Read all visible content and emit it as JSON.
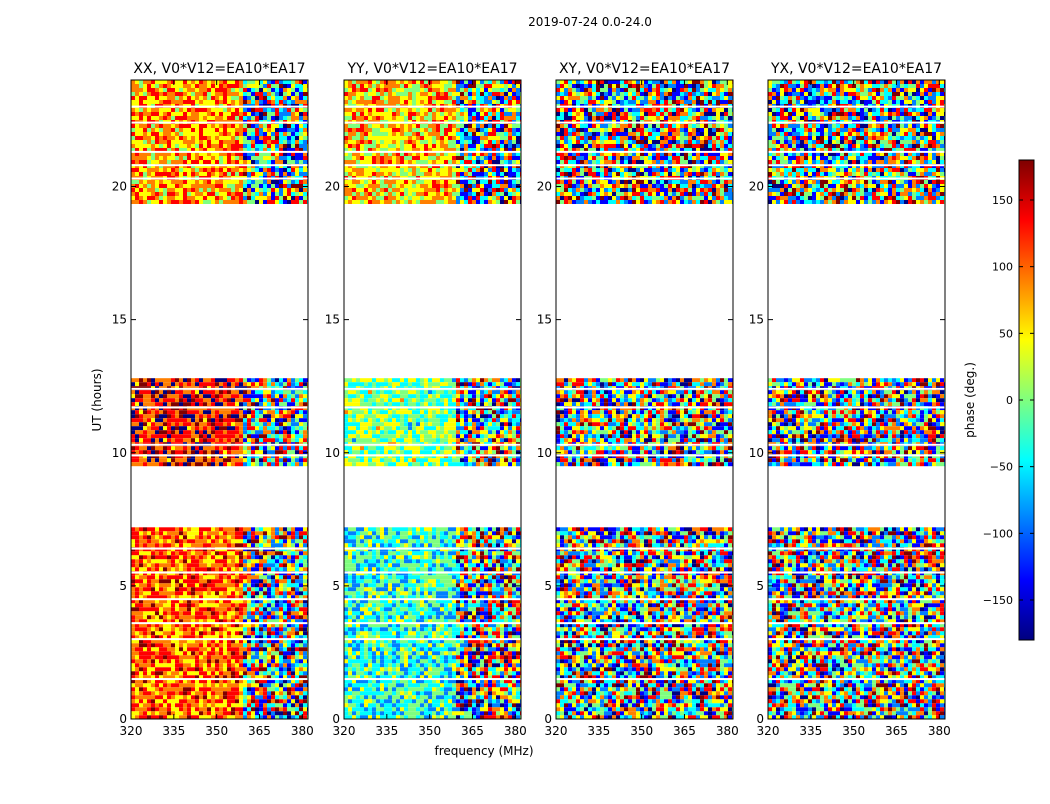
{
  "chart_data": {
    "type": "heatmap",
    "title": "2019-07-24 0.0-24.0",
    "xlabel": "frequency (MHz)",
    "ylabel": "UT (hours)",
    "xlim": [
      320,
      382
    ],
    "ylim": [
      0,
      24
    ],
    "x_ticks": [
      320,
      335,
      350,
      365,
      380
    ],
    "y_ticks": [
      0,
      5,
      10,
      15,
      20
    ],
    "panels": [
      {
        "title": "XX, V0*V12=EA10*EA17",
        "mean_phase_deg": [
          60,
          100,
          130,
          80
        ]
      },
      {
        "title": "YY, V0*V12=EA10*EA17",
        "mean_phase_deg": [
          -60,
          -30,
          0,
          60
        ]
      },
      {
        "title": "XY, V0*V12=EA10*EA17",
        "mean_phase_deg": [
          0,
          0,
          0,
          0
        ]
      },
      {
        "title": "YX, V0*V12=EA10*EA17",
        "mean_phase_deg": [
          0,
          0,
          0,
          0
        ]
      }
    ],
    "data_time_ranges_hours": [
      [
        0.0,
        7.2
      ],
      [
        9.5,
        12.8
      ],
      [
        19.4,
        24.0
      ]
    ],
    "gap_lines_hours": [
      1.5,
      3.0,
      3.6,
      4.5,
      5.5,
      6.4,
      9.9,
      10.3,
      11.7,
      12.4,
      20.3,
      20.8,
      21.3,
      22.4,
      23.0
    ],
    "colorbar": {
      "label": "phase (deg.)",
      "range": [
        -180,
        180
      ],
      "ticks": [
        -150,
        -100,
        -50,
        0,
        50,
        100,
        150
      ],
      "tick_labels": [
        "−150",
        "−100",
        "−50",
        "0",
        "50",
        "100",
        "150"
      ],
      "colormap": [
        "#00007f",
        "#0000ff",
        "#007fff",
        "#00ffff",
        "#7fff7f",
        "#ffff00",
        "#ff7f00",
        "#ff0000",
        "#7f0000"
      ]
    }
  }
}
